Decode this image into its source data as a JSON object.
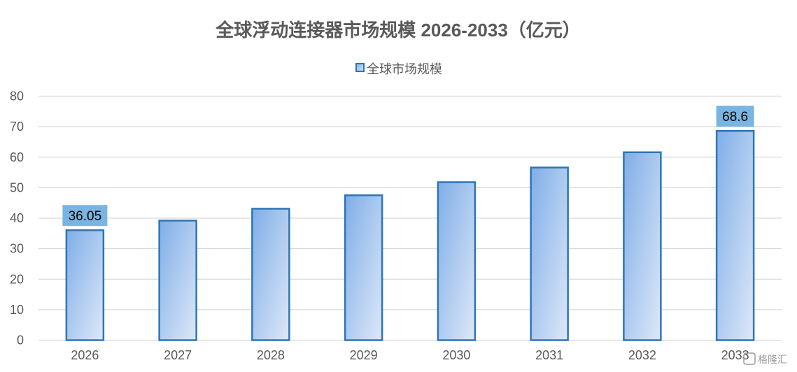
{
  "chart_data": {
    "type": "bar",
    "title": "全球浮动连接器市场规模 2026-2033（亿元）",
    "legend": {
      "position": "top",
      "entries": [
        "全球市场规模"
      ]
    },
    "categories": [
      "2026",
      "2027",
      "2028",
      "2029",
      "2030",
      "2031",
      "2032",
      "2033"
    ],
    "series": [
      {
        "name": "全球市场规模",
        "values": [
          36.05,
          39.2,
          43.1,
          47.5,
          51.8,
          56.6,
          61.6,
          68.6
        ]
      }
    ],
    "data_labels": [
      {
        "index": 0,
        "text": "36.05"
      },
      {
        "index": 7,
        "text": "68.6"
      }
    ],
    "y_ticks": [
      "0",
      "10",
      "20",
      "30",
      "40",
      "50",
      "60",
      "70",
      "80"
    ],
    "ylim": [
      0,
      80
    ],
    "grid": true,
    "colors": {
      "bar_fill_top": "#7faee8",
      "bar_fill_bottom": "#dde8f8",
      "bar_border": "#2e75b6",
      "data_label_bg": "#7ab4e2",
      "gridline": "#d9d9d9",
      "text": "#595959"
    }
  },
  "watermark": "格隆汇"
}
